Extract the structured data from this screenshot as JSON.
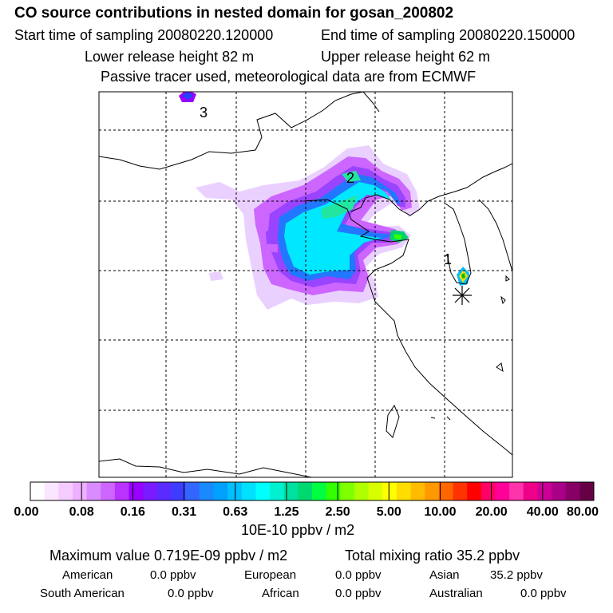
{
  "header": {
    "title": "CO  source contributions in nested domain for gosan_200802",
    "start_sampling": "Start time of sampling 20080220.120000",
    "end_sampling": "End time of sampling 20080220.150000",
    "lower_release": "Lower release height   82 m",
    "upper_release": "Upper release height   62 m",
    "tracer_info": "Passive tracer used, meteorological data are from ECMWF"
  },
  "map": {
    "labels": [
      "1",
      "2",
      "3"
    ],
    "receptor_marker": "star-icon"
  },
  "colorbar": {
    "tick_labels": [
      "0.00",
      "0.08",
      "0.16",
      "0.31",
      "0.63",
      "1.25",
      "2.50",
      "5.00",
      "10.00",
      "20.00",
      "40.00",
      "80.00"
    ],
    "units": "10E-10 ppbv / m2",
    "colors": [
      "#ffffff",
      "#fbe6ff",
      "#f5ccff",
      "#eeb0ff",
      "#d98cff",
      "#cc66ff",
      "#b833ff",
      "#9900ff",
      "#7a1aff",
      "#5a2bff",
      "#3d3dff",
      "#3366ff",
      "#1a88ff",
      "#00a0ff",
      "#00c0ff",
      "#00e0ff",
      "#00ffff",
      "#00f0d0",
      "#00e0a0",
      "#00d870",
      "#00ff40",
      "#33ff00",
      "#80ff00",
      "#b0ff00",
      "#d8ff00",
      "#ffff00",
      "#ffdd00",
      "#ffbb00",
      "#ff9900",
      "#ff6600",
      "#ff3300",
      "#ff0000",
      "#ff0066",
      "#ff0099",
      "#ff33aa",
      "#ee0088",
      "#cc0099",
      "#aa0088",
      "#880066",
      "#660044"
    ]
  },
  "summary": {
    "max_value": "Maximum value  0.719E-09 ppbv / m2",
    "total_mixing": "Total mixing ratio       35.2 ppbv",
    "regions": [
      {
        "name": "American",
        "value": "0.0 ppbv"
      },
      {
        "name": "European",
        "value": "0.0 ppbv"
      },
      {
        "name": "Asian",
        "value": "35.2 ppbv"
      },
      {
        "name": "South American",
        "value": "0.0 ppbv"
      },
      {
        "name": "African",
        "value": "0.0 ppbv"
      },
      {
        "name": "Australian",
        "value": "0.0 ppbv"
      }
    ]
  }
}
